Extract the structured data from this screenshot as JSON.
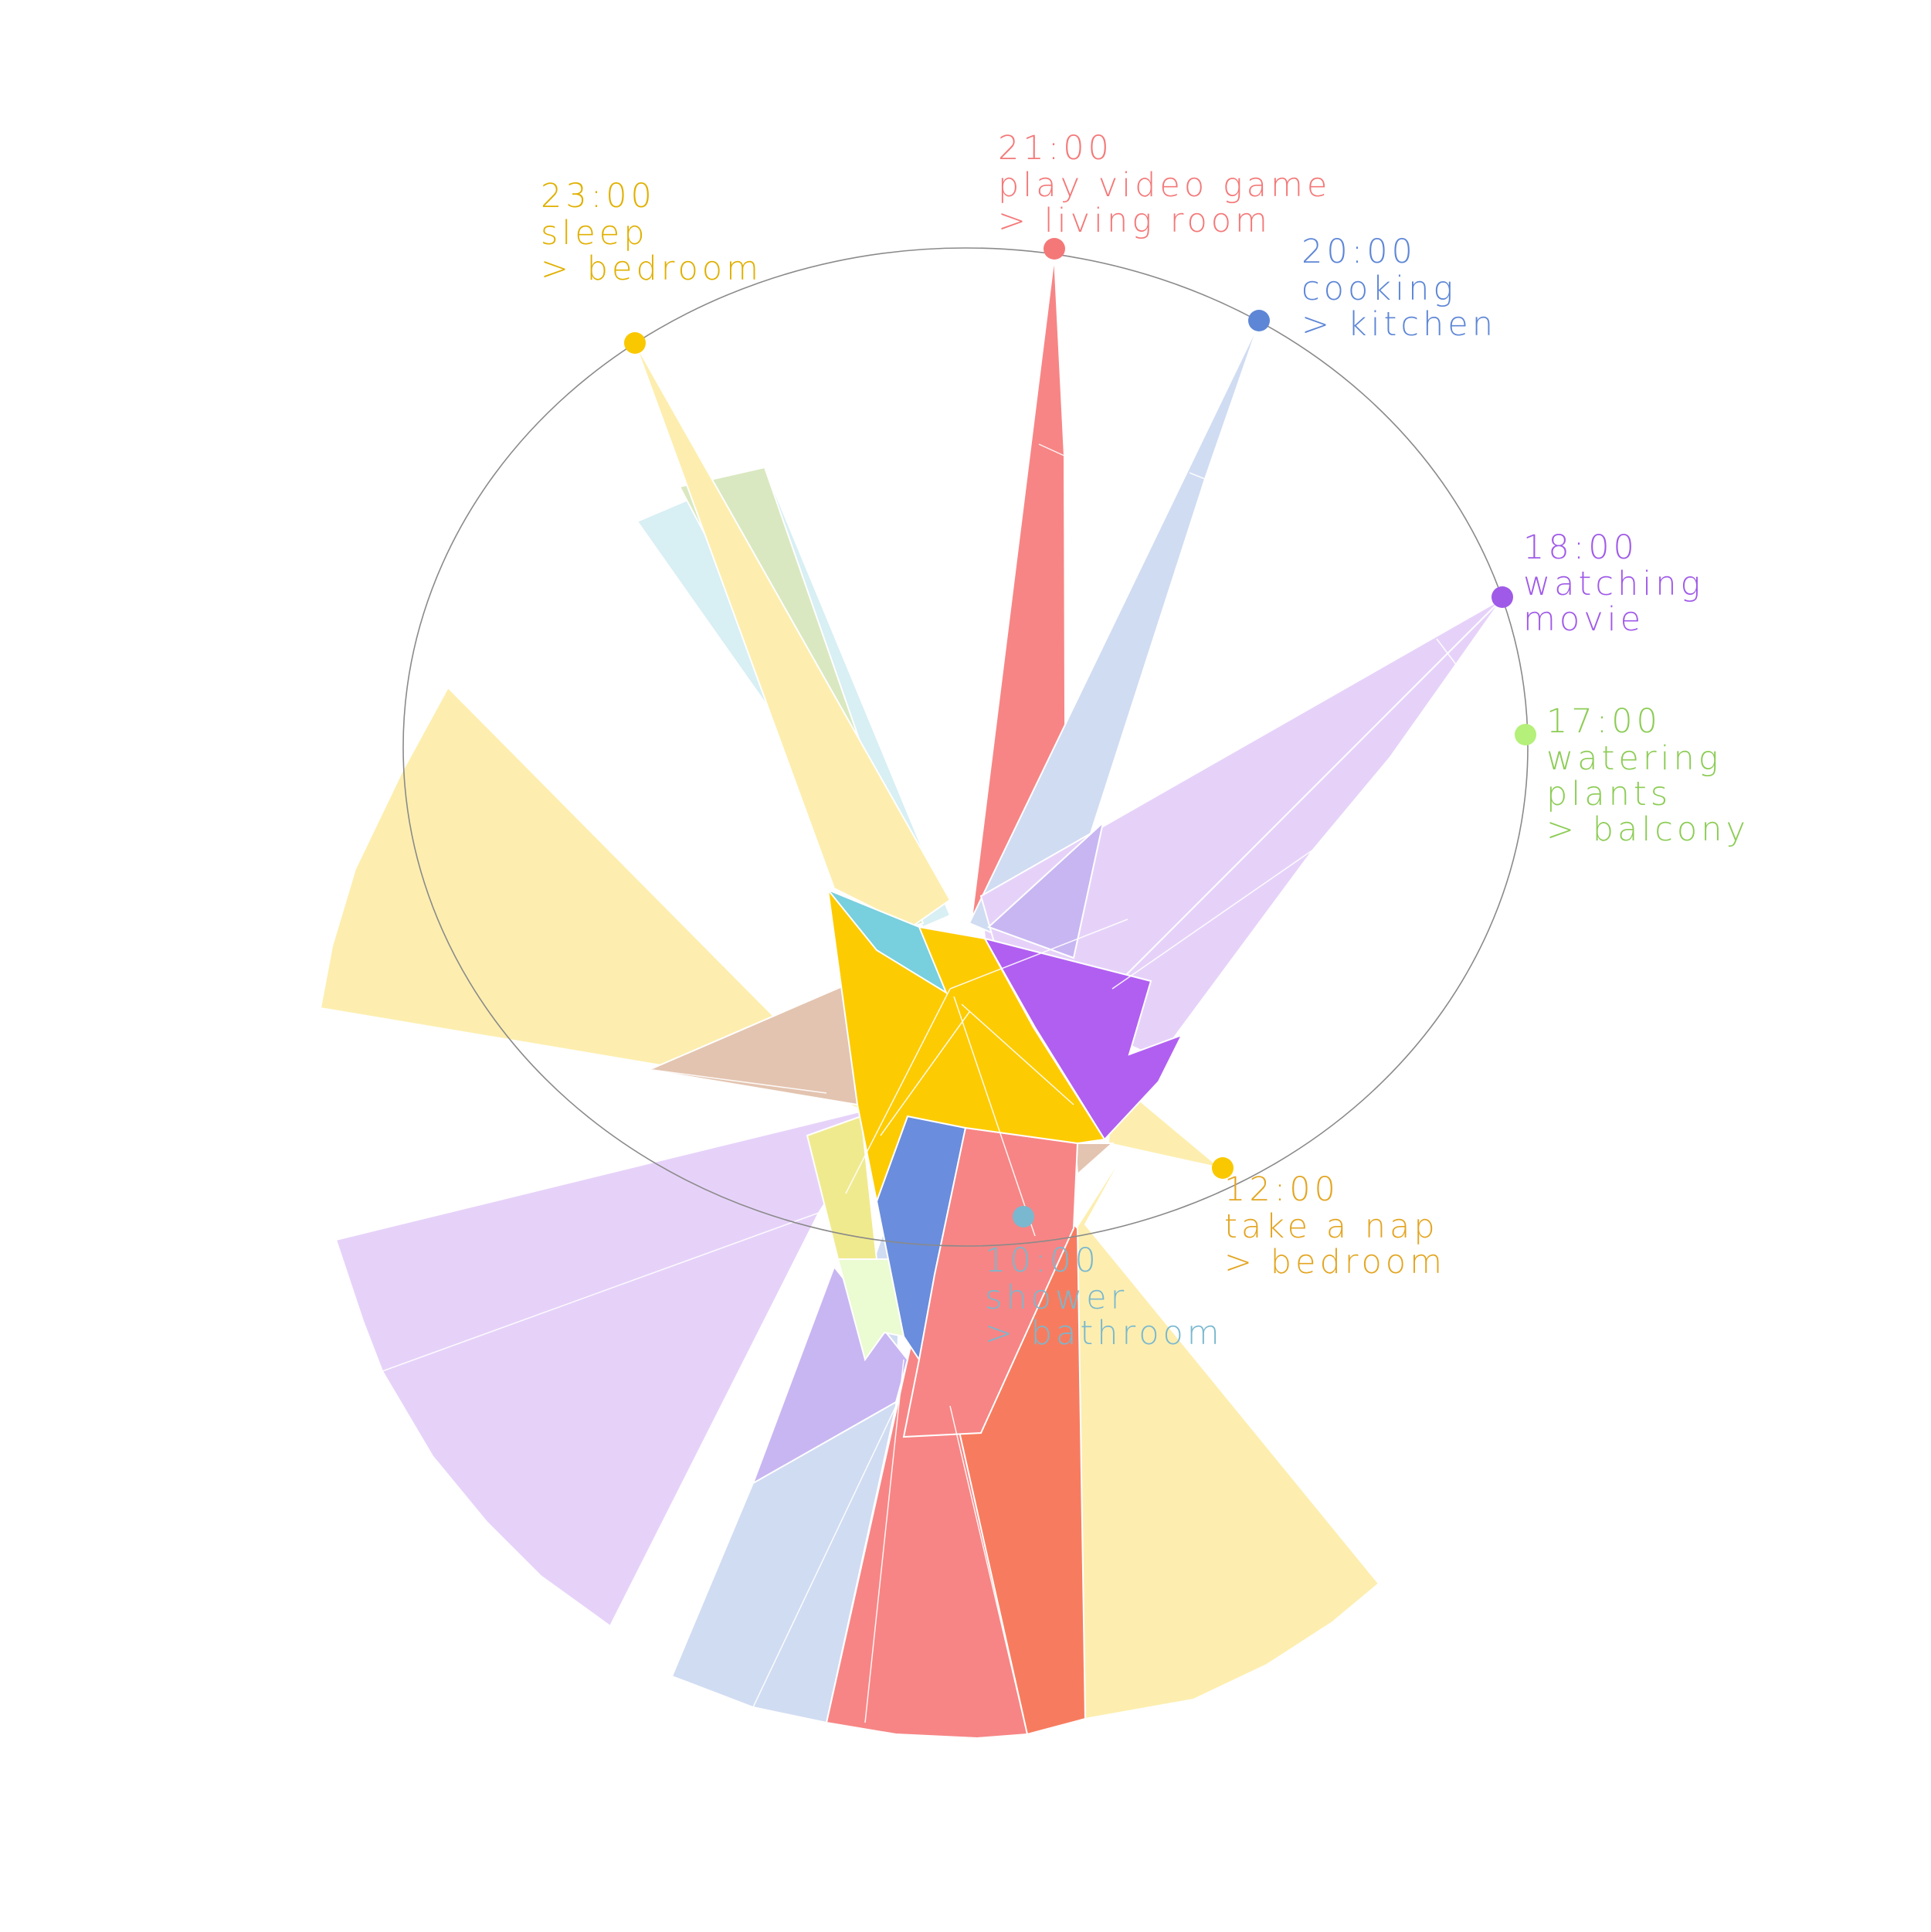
{
  "colors": {
    "sleep": "#f9c800",
    "nap": "#e3a521",
    "game": "#f47878",
    "cooking": "#5d86d6",
    "movie": "#a05ae8",
    "plants": "#9bdc63",
    "shower": "#7ab8cf",
    "ring": "#8a8a8a"
  },
  "events": [
    {
      "id": "sleep",
      "time": "23:00",
      "activity": "sleep",
      "room": "> bedroom"
    },
    {
      "id": "game",
      "time": "21:00",
      "activity": "play video game",
      "room": "> living room"
    },
    {
      "id": "cooking",
      "time": "20:00",
      "activity": "cooking",
      "room": "> kitchen"
    },
    {
      "id": "movie",
      "time": "18:00",
      "activity": "watching",
      "room": "movie"
    },
    {
      "id": "plants",
      "time": "17:00",
      "activity": "watering",
      "room": "plants",
      "extra": "> balcony"
    },
    {
      "id": "nap",
      "time": "12:00",
      "activity": "take a nap",
      "room": "> bedroom"
    },
    {
      "id": "shower",
      "time": "10:00",
      "activity": "shower",
      "room": "> bathroom"
    }
  ]
}
